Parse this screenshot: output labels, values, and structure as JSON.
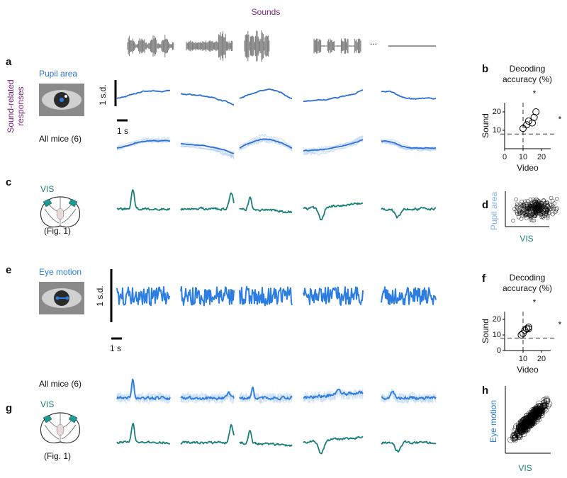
{
  "header": {
    "sounds": "Sounds",
    "ellipsis": "..."
  },
  "side_label": [
    "Sound-related",
    "responses"
  ],
  "panels": {
    "a": {
      "letter": "a",
      "title": "Pupil  area",
      "scale_y": "1 s.d.",
      "scale_x": "1 s",
      "group": "All mice (6)"
    },
    "b": {
      "letter": "b",
      "title_lines": [
        "Decoding",
        "accuracy (%)"
      ],
      "star_top": "*",
      "star_right": "*",
      "xlabel": "Video",
      "ylabel": "Sound",
      "xlim": [
        0,
        25
      ],
      "ylim": [
        0,
        25
      ],
      "xticks": [
        0,
        10,
        20
      ],
      "yticks": [
        10,
        20
      ],
      "points": [
        {
          "x": 10,
          "y": 11
        },
        {
          "x": 12,
          "y": 13
        },
        {
          "x": 13,
          "y": 15
        },
        {
          "x": 15,
          "y": 14
        },
        {
          "x": 16,
          "y": 17
        },
        {
          "x": 17,
          "y": 20
        }
      ]
    },
    "c": {
      "letter": "c",
      "area": "VIS",
      "ref": "(Fig. 1)"
    },
    "d": {
      "letter": "d",
      "ylabel": "Pupil area",
      "xlabel": "VIS"
    },
    "e": {
      "letter": "e",
      "title": "Eye motion",
      "scale_y": "1 s.d.",
      "scale_x": "1 s",
      "group": "All mice (6)"
    },
    "f": {
      "letter": "f",
      "title_lines": [
        "Decoding",
        "accuracy (%)"
      ],
      "star_top": "*",
      "star_right": "*",
      "xlabel": "Video",
      "ylabel": "Sound",
      "xlim": [
        0,
        25
      ],
      "ylim": [
        0,
        25
      ],
      "xticks": [
        10,
        20
      ],
      "yticks": [
        0,
        10,
        20
      ],
      "points": [
        {
          "x": 9,
          "y": 10
        },
        {
          "x": 10,
          "y": 11
        },
        {
          "x": 11,
          "y": 13
        },
        {
          "x": 12,
          "y": 14
        },
        {
          "x": 13,
          "y": 15
        },
        {
          "x": 13,
          "y": 14
        }
      ]
    },
    "g": {
      "letter": "g",
      "area": "VIS",
      "ref": "(Fig. 1)"
    },
    "h": {
      "letter": "h",
      "ylabel": "Eye motion",
      "xlabel": "VIS"
    }
  }
}
